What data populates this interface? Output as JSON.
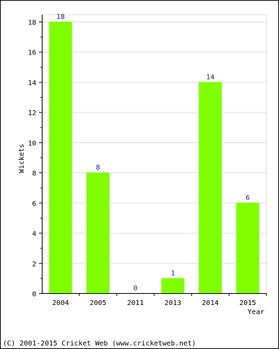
{
  "chart_data": {
    "type": "bar",
    "categories": [
      "2004",
      "2005",
      "2011",
      "2013",
      "2014",
      "2015"
    ],
    "values": [
      18,
      8,
      0,
      1,
      14,
      6
    ],
    "xlabel": "Year",
    "ylabel": "Wickets",
    "ylim": [
      0,
      18
    ],
    "yticks": [
      0,
      2,
      4,
      6,
      8,
      10,
      12,
      14,
      16,
      18
    ],
    "grid": true,
    "bar_color": "#80ff00",
    "label_color": "#1a1a9a"
  },
  "footer": {
    "copyright": "(C) 2001-2015 Cricket Web (www.cricketweb.net)"
  }
}
